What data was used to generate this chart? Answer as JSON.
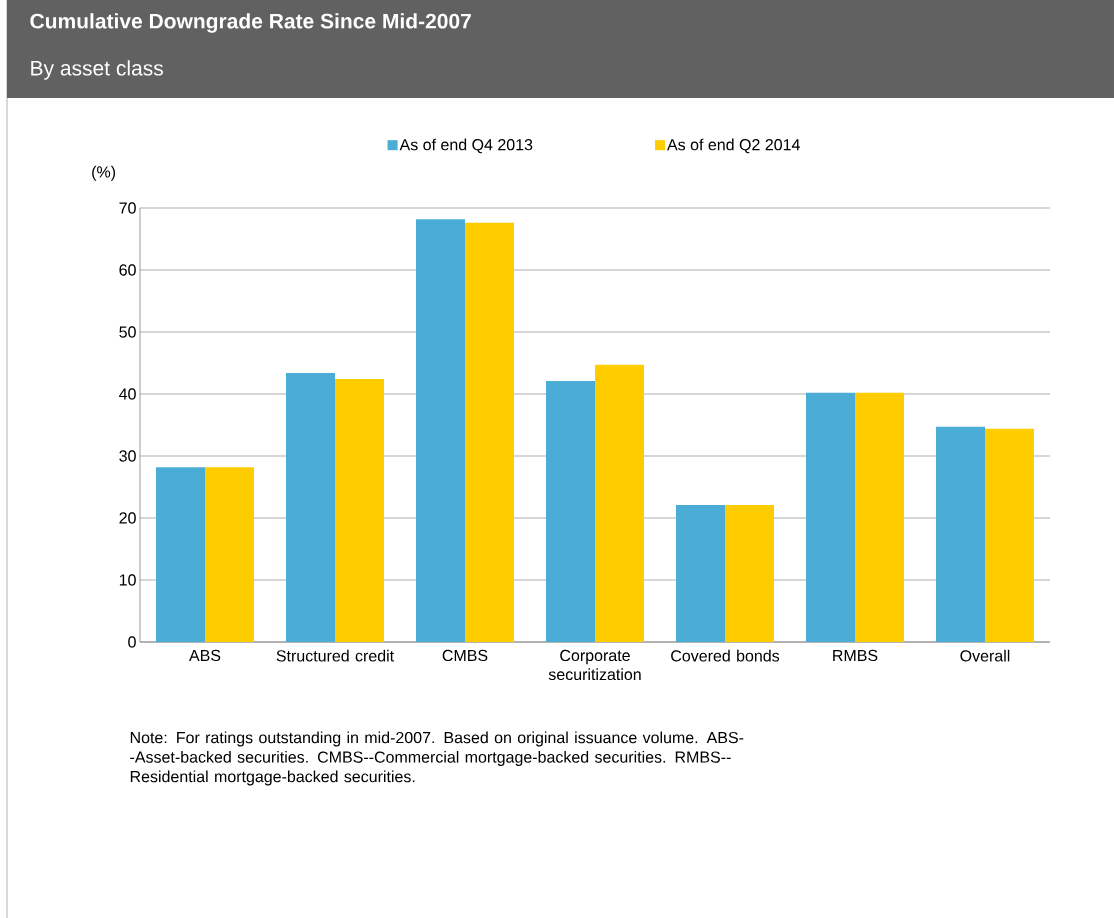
{
  "chart_data": {
    "type": "bar",
    "title": "Cumulative Downgrade Rate Since Mid-2007",
    "subtitle": "By asset class",
    "ylabel": "(%)",
    "categories": [
      "ABS",
      "Structured credit",
      "CMBS",
      "Corporate securitization",
      "Covered bonds",
      "RMBS",
      "Overall"
    ],
    "series": [
      {
        "name": "As of end Q4 2013",
        "color": "#4bacd6",
        "values": [
          28.2,
          43.4,
          68.2,
          42.1,
          22.1,
          40.2,
          34.7
        ]
      },
      {
        "name": "As of end Q2 2014",
        "color": "#ffcc00",
        "values": [
          28.2,
          42.4,
          67.6,
          44.7,
          22.1,
          40.2,
          34.4
        ]
      }
    ],
    "ylim": [
      0,
      70
    ],
    "yticks": [
      0,
      10,
      20,
      30,
      40,
      50,
      60,
      70
    ],
    "grid": "y",
    "legend": "top",
    "annotations": [
      "Note: For ratings outstanding in mid-2007. Based on original issuance volume.  ABS--Asset-backed securities. CMBS--Commercial mortgage-backed securities. RMBS--Residential mortgage-backed securities."
    ]
  }
}
